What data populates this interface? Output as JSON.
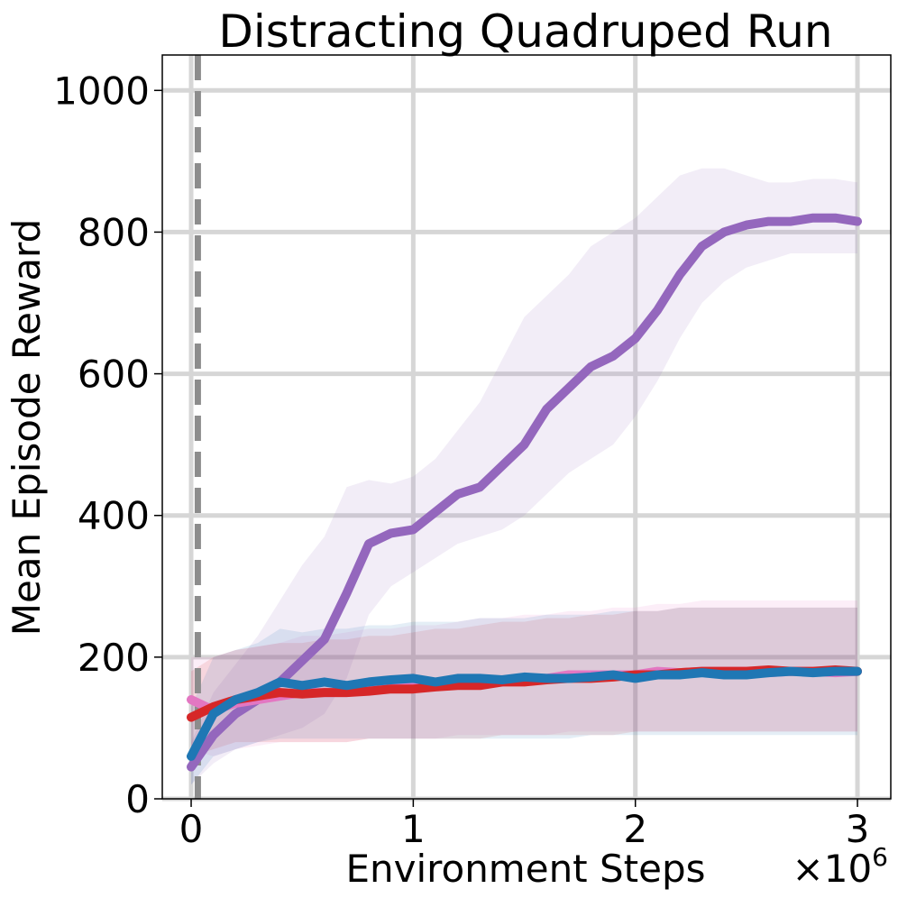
{
  "chart_data": {
    "type": "line",
    "title": "Distracting Quadruped Run",
    "xlabel": "Environment Steps",
    "ylabel": "Mean Episode Reward",
    "x_scale_label": "×10",
    "x_scale_exponent": "6",
    "x_ticks": [
      0,
      1,
      2,
      3
    ],
    "x_tick_labels": [
      "0",
      "1",
      "2",
      "3"
    ],
    "y_ticks": [
      0,
      200,
      400,
      600,
      800,
      1000
    ],
    "y_tick_labels": [
      "0",
      "200",
      "400",
      "600",
      "800",
      "1000"
    ],
    "xlim": [
      -0.13,
      3.15
    ],
    "ylim": [
      0,
      1050
    ],
    "grid": true,
    "legend": "none",
    "vline": {
      "x": 0.03,
      "style": "dashed",
      "color": "#8c8c8c"
    },
    "series": [
      {
        "color": "#9467bd",
        "x": [
          0,
          0.1,
          0.2,
          0.3,
          0.4,
          0.5,
          0.6,
          0.7,
          0.8,
          0.9,
          1.0,
          1.1,
          1.2,
          1.3,
          1.4,
          1.5,
          1.6,
          1.7,
          1.8,
          1.9,
          2.0,
          2.1,
          2.2,
          2.3,
          2.4,
          2.5,
          2.6,
          2.7,
          2.8,
          2.9,
          3.0
        ],
        "values": [
          45,
          90,
          120,
          140,
          165,
          195,
          225,
          290,
          360,
          375,
          380,
          405,
          430,
          440,
          470,
          500,
          550,
          580,
          610,
          625,
          650,
          690,
          740,
          780,
          800,
          810,
          815,
          815,
          820,
          820,
          815
        ],
        "band_upper": [
          80,
          150,
          190,
          230,
          280,
          330,
          370,
          440,
          450,
          445,
          455,
          480,
          520,
          560,
          620,
          680,
          710,
          740,
          780,
          800,
          820,
          850,
          880,
          890,
          890,
          880,
          870,
          870,
          875,
          875,
          870
        ],
        "band_lower": [
          20,
          50,
          70,
          80,
          90,
          100,
          120,
          170,
          260,
          300,
          320,
          340,
          360,
          370,
          380,
          400,
          430,
          460,
          480,
          500,
          540,
          590,
          650,
          700,
          730,
          750,
          760,
          770,
          770,
          770,
          770
        ]
      },
      {
        "color": "#e377c2",
        "x": [
          0,
          0.1,
          0.2,
          0.3,
          0.4,
          0.5,
          0.6,
          0.7,
          0.8,
          0.9,
          1.0,
          1.1,
          1.2,
          1.3,
          1.4,
          1.5,
          1.6,
          1.7,
          1.8,
          1.9,
          2.0,
          2.1,
          2.2,
          2.3,
          2.4,
          2.5,
          2.6,
          2.7,
          2.8,
          2.9,
          3.0
        ],
        "values": [
          140,
          125,
          135,
          140,
          145,
          150,
          150,
          150,
          155,
          160,
          158,
          160,
          165,
          165,
          165,
          170,
          170,
          175,
          175,
          175,
          175,
          180,
          178,
          180,
          180,
          180,
          178,
          180,
          180,
          178,
          180
        ],
        "band_upper": [
          200,
          200,
          210,
          215,
          220,
          230,
          230,
          235,
          240,
          240,
          245,
          245,
          250,
          255,
          255,
          260,
          260,
          265,
          265,
          270,
          270,
          275,
          275,
          280,
          280,
          280,
          280,
          280,
          280,
          280,
          280
        ],
        "band_lower": [
          70,
          60,
          70,
          75,
          80,
          80,
          80,
          80,
          85,
          85,
          85,
          85,
          90,
          90,
          90,
          90,
          90,
          95,
          95,
          95,
          95,
          95,
          95,
          95,
          95,
          95,
          95,
          95,
          95,
          95,
          95
        ]
      },
      {
        "color": "#d62728",
        "x": [
          0,
          0.1,
          0.2,
          0.3,
          0.4,
          0.5,
          0.6,
          0.7,
          0.8,
          0.9,
          1.0,
          1.1,
          1.2,
          1.3,
          1.4,
          1.5,
          1.6,
          1.7,
          1.8,
          1.9,
          2.0,
          2.1,
          2.2,
          2.3,
          2.4,
          2.5,
          2.6,
          2.7,
          2.8,
          2.9,
          3.0
        ],
        "values": [
          115,
          130,
          140,
          145,
          150,
          148,
          150,
          150,
          152,
          155,
          155,
          158,
          160,
          160,
          165,
          165,
          168,
          170,
          170,
          172,
          175,
          175,
          178,
          180,
          180,
          180,
          182,
          180,
          180,
          182,
          180
        ],
        "band_upper": [
          180,
          200,
          210,
          215,
          220,
          220,
          225,
          225,
          230,
          230,
          235,
          240,
          240,
          245,
          250,
          250,
          255,
          255,
          260,
          260,
          265,
          265,
          270,
          270,
          270,
          270,
          270,
          270,
          270,
          270,
          270
        ],
        "band_lower": [
          60,
          70,
          80,
          80,
          80,
          80,
          80,
          80,
          85,
          85,
          85,
          85,
          85,
          85,
          90,
          90,
          90,
          90,
          90,
          90,
          95,
          95,
          95,
          95,
          95,
          95,
          95,
          95,
          95,
          95,
          95
        ]
      },
      {
        "color": "#1f77b4",
        "x": [
          0,
          0.1,
          0.2,
          0.3,
          0.4,
          0.5,
          0.6,
          0.7,
          0.8,
          0.9,
          1.0,
          1.1,
          1.2,
          1.3,
          1.4,
          1.5,
          1.6,
          1.7,
          1.8,
          1.9,
          2.0,
          2.1,
          2.2,
          2.3,
          2.4,
          2.5,
          2.6,
          2.7,
          2.8,
          2.9,
          3.0
        ],
        "values": [
          60,
          120,
          140,
          150,
          165,
          160,
          165,
          160,
          165,
          168,
          170,
          165,
          170,
          170,
          168,
          172,
          170,
          170,
          172,
          175,
          170,
          175,
          175,
          178,
          175,
          175,
          178,
          180,
          178,
          180,
          180
        ],
        "band_upper": [
          130,
          200,
          210,
          220,
          240,
          235,
          240,
          240,
          245,
          245,
          250,
          250,
          250,
          255,
          255,
          255,
          260,
          260,
          260,
          265,
          265,
          265,
          270,
          270,
          270,
          270,
          270,
          270,
          270,
          270,
          270
        ],
        "band_lower": [
          20,
          60,
          70,
          80,
          85,
          85,
          85,
          85,
          85,
          85,
          85,
          85,
          85,
          85,
          85,
          85,
          85,
          85,
          90,
          90,
          90,
          90,
          90,
          90,
          90,
          90,
          90,
          90,
          90,
          90,
          90
        ]
      }
    ]
  }
}
